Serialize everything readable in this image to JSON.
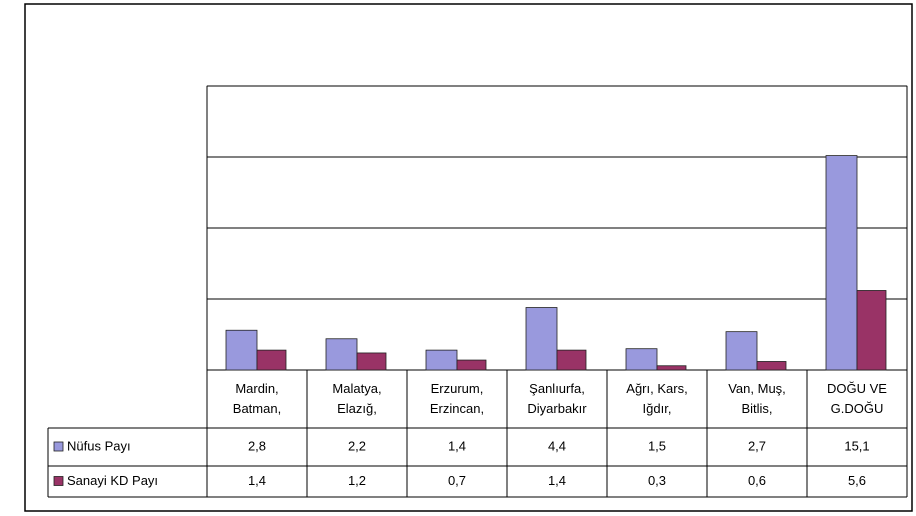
{
  "chart_data": {
    "type": "bar",
    "categories": [
      "Mardin, Batman,",
      "Malatya, Elazığ,",
      "Erzurum, Erzincan,",
      "Şanlıurfa, Diyarbakır",
      "Ağrı, Kars, Iğdır,",
      "Van, Muş, Bitlis,",
      "DOĞU VE G.DOĞU"
    ],
    "series": [
      {
        "name": "Nüfus Payı",
        "color": "#9999dd",
        "values": [
          2.8,
          2.2,
          1.4,
          4.4,
          1.5,
          2.7,
          15.1
        ],
        "value_labels": [
          "2,8",
          "2,2",
          "1,4",
          "4,4",
          "1,5",
          "2,7",
          "15,1"
        ]
      },
      {
        "name": "Sanayi KD Payı",
        "color": "#993366",
        "values": [
          1.4,
          1.2,
          0.7,
          1.4,
          0.3,
          0.6,
          5.6
        ],
        "value_labels": [
          "1,4",
          "1,2",
          "0,7",
          "1,4",
          "0,3",
          "0,6",
          "5,6"
        ]
      }
    ],
    "ylim": [
      0,
      20
    ],
    "yticks": [
      0,
      5,
      10,
      15,
      20
    ],
    "grid": true
  }
}
